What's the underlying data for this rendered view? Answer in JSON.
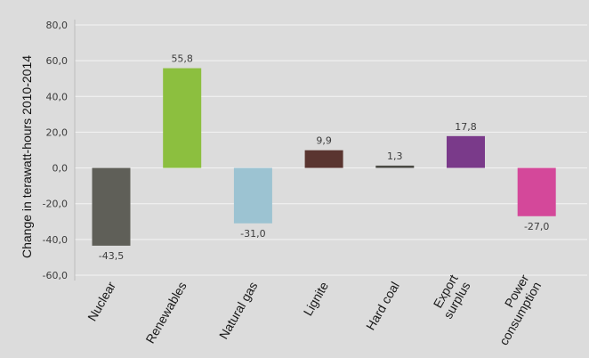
{
  "chart_data": {
    "type": "bar",
    "title": "",
    "xlabel": "",
    "ylabel": "Change in terawatt-hours 2010-2014",
    "ylim": [
      -60,
      80
    ],
    "yticks": [
      80,
      60,
      40,
      20,
      0,
      -20,
      -40,
      -60
    ],
    "ytick_labels": [
      "80,0",
      "60,0",
      "40,0",
      "20,0",
      "0,0",
      "-20,0",
      "-40,0",
      "-60,0"
    ],
    "grid": true,
    "categories": [
      [
        "Nuclear"
      ],
      [
        "Renewables"
      ],
      [
        "Natural gas"
      ],
      [
        "Lignite"
      ],
      [
        "Hard coal"
      ],
      [
        "Export",
        "surplus"
      ],
      [
        "Power",
        "consumption"
      ]
    ],
    "values": [
      -43.5,
      55.8,
      -31.0,
      9.9,
      1.3,
      17.8,
      -27.0
    ],
    "value_labels": [
      "-43,5",
      "55,8",
      "-31,0",
      "9,9",
      "1,3",
      "17,8",
      "-27,0"
    ],
    "colors": [
      "#5f5f58",
      "#8cbf3f",
      "#9cc3d2",
      "#5a3530",
      "#4a4a44",
      "#7a3a8a",
      "#d4489a"
    ]
  }
}
